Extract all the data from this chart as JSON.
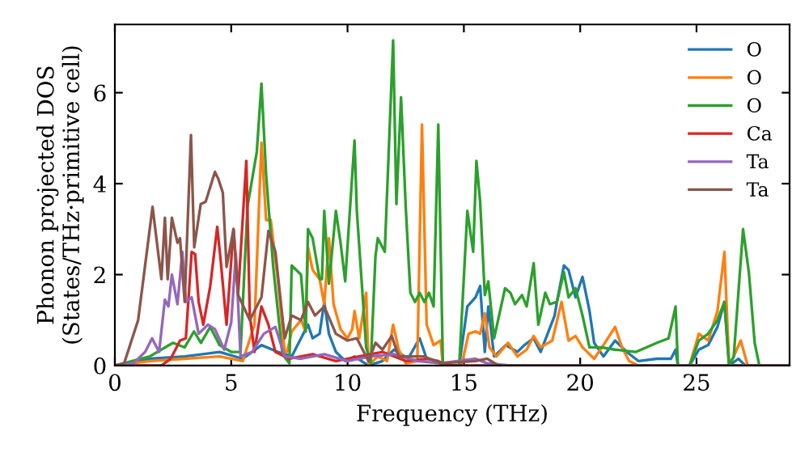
{
  "chart_data": {
    "type": "line",
    "xlabel": "Frequency (THz)",
    "ylabel": "Phonon projected DOS\n(States/THz·primitive cell)",
    "xlim": [
      0,
      29
    ],
    "ylim": [
      0,
      7.5
    ],
    "xticks": [
      0,
      5,
      10,
      15,
      20,
      25
    ],
    "yticks": [
      0,
      2,
      4,
      6
    ],
    "grid": false,
    "legend": "top right",
    "marker": "none",
    "line_style": "solid",
    "series": [
      {
        "name": "O",
        "color": "#1f77b4",
        "x": [
          0,
          1.5,
          3,
          4.5,
          5.5,
          6.3,
          7.0,
          7.6,
          8.3,
          8.5,
          8.8,
          9.0,
          9.2,
          9.5,
          9.9,
          10.3,
          10.9,
          11.5,
          12.0,
          12.6,
          13.1,
          13.4,
          13.9,
          14.1,
          14.8,
          15.15,
          15.5,
          15.7,
          15.9,
          16.05,
          16.3,
          16.8,
          17.3,
          17.6,
          18.0,
          18.3,
          18.9,
          19.0,
          19.3,
          19.5,
          19.8,
          20.1,
          20.4,
          20.6,
          21.0,
          21.5,
          22.0,
          22.5,
          23.3,
          23.9,
          24.1,
          24.2,
          24.7,
          25.1,
          25.5,
          25.9,
          26.2,
          26.4,
          26.8,
          27.1,
          29
        ],
        "values": [
          0,
          0.15,
          0.2,
          0.3,
          0.15,
          0.45,
          0.3,
          0.2,
          0.9,
          0.6,
          0.7,
          1.4,
          0.7,
          0.3,
          0.1,
          0.2,
          0,
          0.1,
          0.35,
          0.15,
          0.6,
          0.15,
          0.1,
          0,
          0,
          1.3,
          1.5,
          1.75,
          0.3,
          1.3,
          0.2,
          0.45,
          0.3,
          0.45,
          0.6,
          0.3,
          1.1,
          1.4,
          2.2,
          2.1,
          1.5,
          1.95,
          1.2,
          0.5,
          0.2,
          0.55,
          0.3,
          0.1,
          0.15,
          0.15,
          0.35,
          0,
          0,
          0.35,
          0.45,
          0.85,
          1.4,
          0,
          0.15,
          0,
          0
        ]
      },
      {
        "name": "O",
        "color": "#ff7f0e",
        "x": [
          0,
          1.5,
          3,
          4.5,
          5.5,
          6.0,
          6.3,
          6.5,
          6.7,
          7.0,
          7.3,
          7.4,
          7.6,
          8.0,
          8.2,
          8.3,
          8.5,
          8.8,
          9.0,
          9.2,
          9.4,
          9.7,
          10.0,
          10.2,
          10.3,
          10.5,
          10.8,
          10.9,
          11.3,
          11.7,
          11.96,
          12.2,
          12.5,
          13.0,
          13.2,
          13.4,
          13.7,
          14.0,
          14.1,
          14.9,
          15.2,
          15.5,
          15.7,
          15.9,
          16.1,
          16.4,
          16.9,
          17.3,
          17.7,
          18.0,
          18.3,
          18.8,
          19.2,
          19.5,
          19.8,
          20.1,
          20.6,
          21.0,
          21.5,
          21.8,
          22.1,
          22.5,
          24.7,
          25.1,
          25.5,
          25.9,
          26.2,
          26.4,
          26.6,
          26.9,
          27.2,
          29
        ],
        "values": [
          0,
          0.1,
          0.15,
          0.2,
          0.1,
          0.9,
          4.9,
          3.2,
          3.2,
          1.9,
          0.3,
          0.3,
          0.75,
          1.0,
          0.75,
          2.6,
          2.1,
          1.9,
          1.35,
          2.8,
          1.35,
          0.8,
          0.6,
          0.8,
          1.2,
          0.6,
          1.6,
          0,
          0.2,
          0.1,
          0.9,
          0.35,
          0.05,
          0.1,
          5.3,
          0.9,
          0.45,
          0.55,
          0,
          0,
          0.7,
          0.75,
          0.7,
          1.15,
          0.4,
          0.2,
          0.5,
          0.2,
          0.35,
          0.65,
          0.4,
          0.55,
          1.4,
          0.55,
          0.65,
          0.4,
          0.15,
          0.45,
          0.85,
          0.4,
          0.1,
          0,
          0,
          0.7,
          0.55,
          1.2,
          2.5,
          0,
          0.2,
          0.55,
          0,
          0
        ]
      },
      {
        "name": "O",
        "color": "#2ca02c",
        "x": [
          0,
          1.5,
          2.5,
          3.0,
          3.4,
          3.7,
          4.1,
          4.5,
          5.0,
          5.4,
          5.7,
          6.1,
          6.3,
          6.5,
          6.8,
          7.2,
          7.5,
          7.6,
          8.0,
          8.2,
          8.3,
          8.5,
          8.8,
          8.9,
          9.0,
          9.2,
          9.5,
          9.7,
          9.9,
          10.3,
          10.4,
          10.8,
          11.0,
          11.2,
          11.3,
          11.6,
          11.96,
          12.1,
          12.3,
          12.5,
          12.7,
          12.9,
          13.1,
          13.3,
          13.5,
          13.7,
          13.9,
          14.1,
          14.8,
          15.15,
          15.4,
          15.54,
          15.7,
          15.9,
          16.05,
          16.3,
          16.77,
          17.0,
          17.2,
          17.5,
          17.7,
          18.0,
          18.2,
          18.5,
          18.7,
          19.0,
          19.3,
          19.5,
          19.8,
          20.1,
          20.4,
          20.9,
          21.5,
          22.4,
          23.3,
          23.8,
          24.1,
          24.2,
          24.7,
          25.1,
          25.5,
          25.9,
          26.2,
          26.4,
          26.6,
          27.0,
          27.25,
          27.5,
          27.7,
          29
        ],
        "values": [
          0,
          0.2,
          0.5,
          0.4,
          0.75,
          0.5,
          0.85,
          0.45,
          0.3,
          0.3,
          3.5,
          4.7,
          6.2,
          4.2,
          2.2,
          0.25,
          0.05,
          2.2,
          2.0,
          0.75,
          3.0,
          2.8,
          1.9,
          1.9,
          3.4,
          1.8,
          3.4,
          2.7,
          1.85,
          4.95,
          3.4,
          0.4,
          0.05,
          2.4,
          2.8,
          2.5,
          7.15,
          3.55,
          5.9,
          3.5,
          1.6,
          1.4,
          1.6,
          1.4,
          1.6,
          1.3,
          5.3,
          0,
          0,
          3.4,
          2.5,
          4.5,
          3.6,
          1.55,
          1.85,
          0.6,
          1.7,
          1.6,
          1.35,
          1.55,
          1.3,
          2.25,
          0.9,
          1.6,
          1.35,
          1.4,
          2.05,
          1.5,
          1.7,
          1.1,
          0.4,
          0.4,
          0.35,
          0.3,
          0.5,
          0.6,
          1.3,
          0,
          0,
          0.55,
          0.7,
          1.0,
          1.4,
          0,
          0.2,
          3.0,
          2.05,
          0.5,
          0,
          0
        ]
      },
      {
        "name": "Ca",
        "color": "#d62728",
        "x": [
          0,
          2.0,
          2.4,
          2.8,
          3.05,
          3.3,
          3.45,
          3.6,
          3.8,
          4.1,
          4.4,
          4.55,
          4.8,
          5.1,
          5.3,
          5.65,
          5.8,
          6.0,
          6.3,
          6.6,
          6.9,
          7.5,
          8.5,
          9.5,
          10.5,
          11.5,
          12.5,
          13.5,
          14.5,
          29
        ],
        "values": [
          0,
          0,
          0.15,
          0.55,
          0.6,
          2.5,
          2.45,
          1.4,
          0.9,
          1.75,
          3.05,
          2.3,
          0.9,
          3.0,
          1.6,
          4.5,
          1.1,
          0.3,
          1.3,
          0.9,
          0.3,
          0.15,
          0.25,
          0.1,
          0.2,
          0.3,
          0.1,
          0.15,
          0,
          0
        ]
      },
      {
        "name": "Ta",
        "color": "#9467bd",
        "x": [
          0,
          0.8,
          1.3,
          1.6,
          1.9,
          2.15,
          2.3,
          2.45,
          2.69,
          2.9,
          3.05,
          3.3,
          3.6,
          4.0,
          4.3,
          4.7,
          5.0,
          5.2,
          5.4,
          5.9,
          6.4,
          6.9,
          7.3,
          8.0,
          9.0,
          10.0,
          11.0,
          12.0,
          13.0,
          14.0,
          15.5,
          16.0,
          17.0,
          29
        ],
        "values": [
          0,
          0.05,
          0.3,
          0.6,
          0.3,
          1.45,
          1.3,
          2.0,
          1.35,
          2.5,
          1.4,
          1.5,
          0.7,
          0.9,
          0.8,
          0.35,
          0.95,
          2.45,
          0.2,
          0.3,
          0.7,
          0.85,
          0.2,
          0.15,
          0.25,
          0.1,
          0.2,
          0.25,
          0.1,
          0.05,
          0.15,
          0.05,
          0,
          0
        ]
      },
      {
        "name": "Ta",
        "color": "#8c564b",
        "x": [
          0,
          0.4,
          1.0,
          1.62,
          2.0,
          2.15,
          2.27,
          2.45,
          2.69,
          2.8,
          3.0,
          3.27,
          3.41,
          3.69,
          3.9,
          4.3,
          4.45,
          4.64,
          4.8,
          5.1,
          5.3,
          5.8,
          6.3,
          6.6,
          6.9,
          7.3,
          7.6,
          8.0,
          8.3,
          8.6,
          9.0,
          9.5,
          10.0,
          10.4,
          10.9,
          11.2,
          11.5,
          11.9,
          12.2,
          13.3,
          14.0,
          15.5,
          16.0,
          16.5,
          29
        ],
        "values": [
          0,
          0.05,
          1.0,
          3.49,
          1.9,
          3.25,
          1.9,
          3.25,
          2.7,
          2.8,
          1.4,
          5.07,
          2.6,
          3.55,
          3.6,
          4.26,
          4.1,
          3.8,
          2.17,
          3.0,
          1.55,
          1.0,
          1.5,
          2.96,
          2.5,
          0.6,
          1.1,
          1.0,
          1.4,
          1.1,
          1.3,
          0.7,
          0.55,
          0.6,
          0.1,
          0.5,
          0.35,
          0.65,
          0.2,
          0.2,
          0.05,
          0.1,
          0.15,
          0,
          0
        ]
      }
    ]
  }
}
